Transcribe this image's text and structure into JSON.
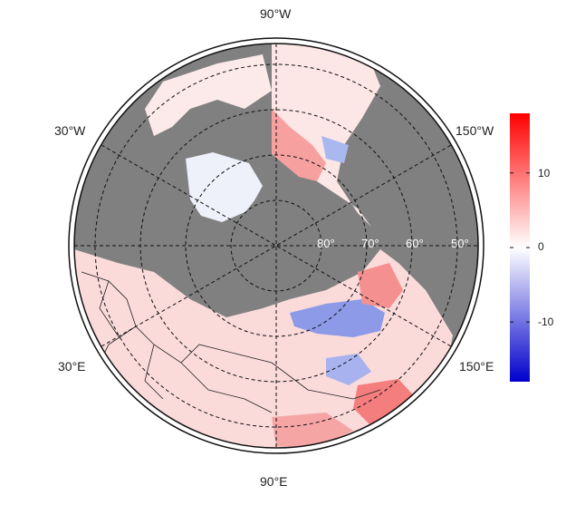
{
  "map": {
    "projection": "north polar stereographic",
    "background_color": "#808080",
    "grid_line_style": "dashed",
    "longitude_labels": {
      "top": "90°W",
      "bottom": "90°E",
      "upper_left": "30°W",
      "lower_left": "30°E",
      "upper_right": "150°W",
      "lower_right": "150°E"
    },
    "latitude_labels": [
      "80°",
      "70°",
      "60°",
      "50°"
    ]
  },
  "colorbar": {
    "tick_labels": [
      "10",
      "0",
      "-10"
    ],
    "tick_values": [
      10,
      0,
      -10
    ],
    "range": [
      -18,
      18
    ],
    "colors": {
      "high": "#ff0000",
      "mid": "#ffffff",
      "low": "#0000cc"
    }
  }
}
